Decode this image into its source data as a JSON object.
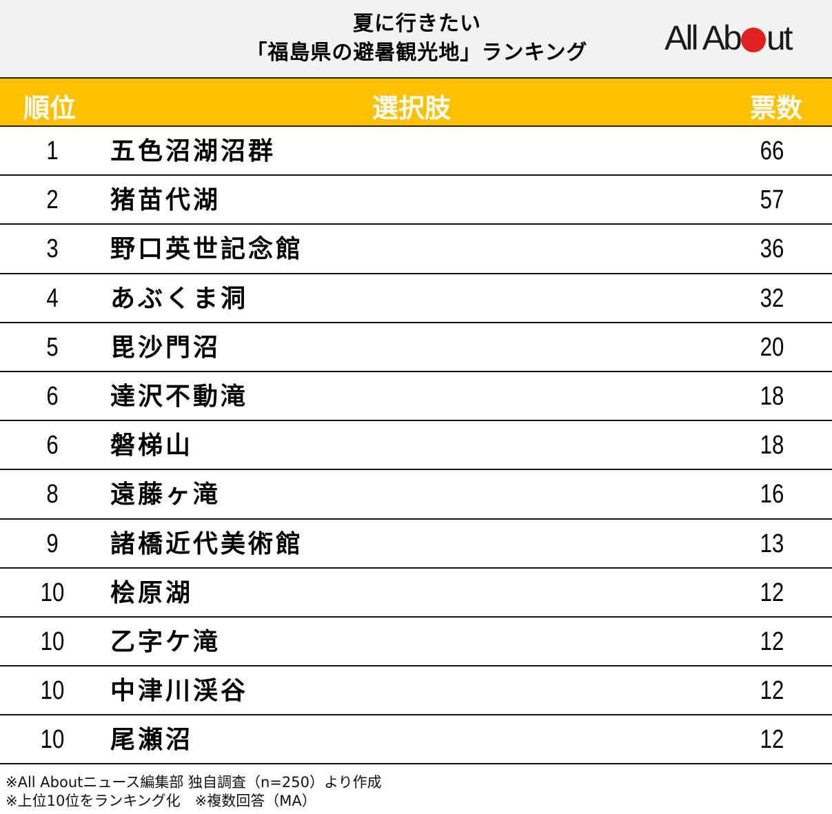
{
  "title": {
    "line1": "夏に行きたい",
    "line2": "「福島県の避暑観光地」ランキング"
  },
  "logo": {
    "text_before": "All Ab",
    "dot_color": "#e02020",
    "text_after": "ut"
  },
  "colors": {
    "header_bg": "#ffc000",
    "header_text": "#ffffff",
    "title_bg": "#f2f2f2"
  },
  "header": {
    "rank": "順位",
    "choice": "選択肢",
    "votes": "票数"
  },
  "rows": [
    {
      "rank": "1",
      "name": "五色沼湖沼群",
      "votes": "66"
    },
    {
      "rank": "2",
      "name": "猪苗代湖",
      "votes": "57"
    },
    {
      "rank": "3",
      "name": "野口英世記念館",
      "votes": "36"
    },
    {
      "rank": "4",
      "name": "あぶくま洞",
      "votes": "32"
    },
    {
      "rank": "5",
      "name": "毘沙門沼",
      "votes": "20"
    },
    {
      "rank": "6",
      "name": "達沢不動滝",
      "votes": "18"
    },
    {
      "rank": "6",
      "name": "磐梯山",
      "votes": "18"
    },
    {
      "rank": "8",
      "name": "遠藤ヶ滝",
      "votes": "16"
    },
    {
      "rank": "9",
      "name": "諸橋近代美術館",
      "votes": "13"
    },
    {
      "rank": "10",
      "name": "桧原湖",
      "votes": "12"
    },
    {
      "rank": "10",
      "name": "乙字ケ滝",
      "votes": "12"
    },
    {
      "rank": "10",
      "name": "中津川渓谷",
      "votes": "12"
    },
    {
      "rank": "10",
      "name": "尾瀬沼",
      "votes": "12"
    }
  ],
  "notes": {
    "line1": "※All Aboutニュース編集部 独自調査（n=250）より作成",
    "line2": "※上位10位をランキング化　※複数回答（MA）"
  },
  "chart_data": {
    "type": "table",
    "title": "夏に行きたい「福島県の避暑観光地」ランキング",
    "columns": [
      "順位",
      "選択肢",
      "票数"
    ],
    "categories": [
      "五色沼湖沼群",
      "猪苗代湖",
      "野口英世記念館",
      "あぶくま洞",
      "毘沙門沼",
      "達沢不動滝",
      "磐梯山",
      "遠藤ヶ滝",
      "諸橋近代美術館",
      "桧原湖",
      "乙字ケ滝",
      "中津川渓谷",
      "尾瀬沼"
    ],
    "ranks": [
      1,
      2,
      3,
      4,
      5,
      6,
      6,
      8,
      9,
      10,
      10,
      10,
      10
    ],
    "values": [
      66,
      57,
      36,
      32,
      20,
      18,
      18,
      16,
      13,
      12,
      12,
      12,
      12
    ],
    "sample_size": 250,
    "source_note": "※All Aboutニュース編集部 独自調査（n=250）より作成",
    "method_note": "※上位10位をランキング化　※複数回答（MA）"
  }
}
